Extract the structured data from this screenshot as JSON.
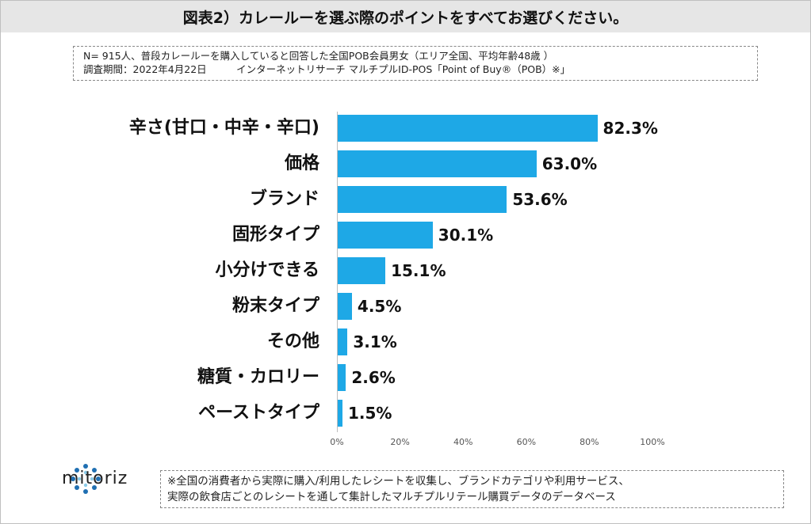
{
  "header": {
    "title": "図表2）カレールーを選ぶ際のポイントをすべてお選びください。"
  },
  "note": {
    "line1": "N= 915人、普段カレールーを購入していると回答した全国POB会員男女（エリア全国、平均年齢48歳 ）",
    "line2": "調査期間：2022年4月22日　　　インターネットリサーチ マルチプルID-POS「Point of Buy®（POB）※」"
  },
  "chart_data": {
    "type": "bar",
    "orientation": "horizontal",
    "categories": [
      "辛さ(甘口・中辛・辛口)",
      "価格",
      "ブランド",
      "固形タイプ",
      "小分けできる",
      "粉末タイプ",
      "その他",
      "糖質・カロリー",
      "ペーストタイプ"
    ],
    "values": [
      82.3,
      63.0,
      53.6,
      30.1,
      15.1,
      4.5,
      3.1,
      2.6,
      1.5
    ],
    "value_labels": [
      "82.3%",
      "63.0%",
      "53.6%",
      "30.1%",
      "15.1%",
      "4.5%",
      "3.1%",
      "2.6%",
      "1.5%"
    ],
    "xlim": [
      0,
      100
    ],
    "x_ticks": [
      "0%",
      "20%",
      "40%",
      "60%",
      "80%",
      "100%"
    ],
    "x_tick_values": [
      0,
      20,
      40,
      60,
      80,
      100
    ],
    "bar_color": "#1ea8e6",
    "grid": false
  },
  "logo": {
    "text": "mitoriz",
    "icon": "mitoriz-logo-icon",
    "color": "#1f6fb2"
  },
  "footnote": {
    "line1": "※全国の消費者から実際に購入/利用したレシートを収集し、ブランドカテゴリや利用サービス、",
    "line2": "実際の飲食店ごとのレシートを通して集計したマルチプルリテール購買データのデータベース"
  }
}
